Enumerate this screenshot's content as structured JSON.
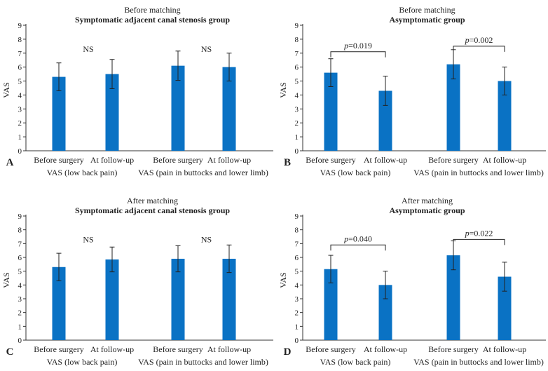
{
  "colors": {
    "bar": "#0a72c4",
    "axis": "#333333",
    "error": "#222222"
  },
  "chart_data": [
    {
      "type": "bar",
      "panel_label": "A",
      "supertitle": "Before matching",
      "title": "Symptomatic adjacent canal stenosis group",
      "ylabel": "VAS",
      "ylim": [
        0,
        9
      ],
      "yticks": [
        "0",
        "1",
        "2",
        "3",
        "4",
        "5",
        "6",
        "7",
        "8",
        "9"
      ],
      "categories": [
        "Before surgery",
        "At follow-up",
        "Before surgery",
        "At follow-up"
      ],
      "values": [
        5.3,
        5.5,
        6.1,
        6.0
      ],
      "errors": [
        1.0,
        1.05,
        1.05,
        1.0
      ],
      "groups": [
        "VAS (low back pain)",
        "VAS (pain in buttocks and lower limb)"
      ],
      "comparisons": [
        {
          "text": "NS",
          "bracket": false,
          "bars": [
            0,
            1
          ],
          "at": 7.3
        },
        {
          "text": "NS",
          "bracket": false,
          "bars": [
            2,
            3
          ],
          "at": 7.3
        }
      ]
    },
    {
      "type": "bar",
      "panel_label": "B",
      "supertitle": "Before matching",
      "title": "Asymptomatic group",
      "ylabel": "VAS",
      "ylim": [
        0,
        9
      ],
      "yticks": [
        "0",
        "1",
        "2",
        "3",
        "4",
        "5",
        "6",
        "7",
        "8",
        "9"
      ],
      "categories": [
        "Before surgery",
        "At follow-up",
        "Before surgery",
        "At follow-up"
      ],
      "values": [
        5.6,
        4.3,
        6.2,
        5.0
      ],
      "errors": [
        1.0,
        1.05,
        1.05,
        1.0
      ],
      "groups": [
        "VAS (low back pain)",
        "VAS (pain in buttocks and lower limb)"
      ],
      "comparisons": [
        {
          "text": "p=0.019",
          "bracket": true,
          "bars": [
            0,
            1
          ],
          "at": 7.1
        },
        {
          "text": "p=0.002",
          "bracket": true,
          "bars": [
            2,
            3
          ],
          "at": 7.5
        }
      ]
    },
    {
      "type": "bar",
      "panel_label": "C",
      "supertitle": "After matching",
      "title": "Symptomatic adjacent canal stenosis group",
      "ylabel": "VAS",
      "ylim": [
        0,
        9
      ],
      "yticks": [
        "0",
        "1",
        "2",
        "3",
        "4",
        "5",
        "6",
        "7",
        "8",
        "9"
      ],
      "categories": [
        "Before surgery",
        "At follow-up",
        "Before surgery",
        "At follow-up"
      ],
      "values": [
        5.3,
        5.85,
        5.9,
        5.9
      ],
      "errors": [
        1.0,
        0.9,
        0.95,
        1.0
      ],
      "groups": [
        "VAS (low back pain)",
        "VAS (pain in buttocks and lower limb)"
      ],
      "comparisons": [
        {
          "text": "NS",
          "bracket": false,
          "bars": [
            0,
            1
          ],
          "at": 7.3
        },
        {
          "text": "NS",
          "bracket": false,
          "bars": [
            2,
            3
          ],
          "at": 7.3
        }
      ]
    },
    {
      "type": "bar",
      "panel_label": "D",
      "supertitle": "After matching",
      "title": "Asymptomatic group",
      "ylabel": "VAS",
      "ylim": [
        0,
        9
      ],
      "yticks": [
        "0",
        "1",
        "2",
        "3",
        "4",
        "5",
        "6",
        "7",
        "8",
        "9"
      ],
      "categories": [
        "Before surgery",
        "At follow-up",
        "Before surgery",
        "At follow-up"
      ],
      "values": [
        5.15,
        4.0,
        6.15,
        4.6
      ],
      "errors": [
        1.0,
        1.0,
        1.05,
        1.05
      ],
      "groups": [
        "VAS (low back pain)",
        "VAS (pain in buttocks and lower limb)"
      ],
      "comparisons": [
        {
          "text": "p=0.040",
          "bracket": true,
          "bars": [
            0,
            1
          ],
          "at": 6.9
        },
        {
          "text": "p=0.022",
          "bracket": true,
          "bars": [
            2,
            3
          ],
          "at": 7.3
        }
      ]
    }
  ]
}
